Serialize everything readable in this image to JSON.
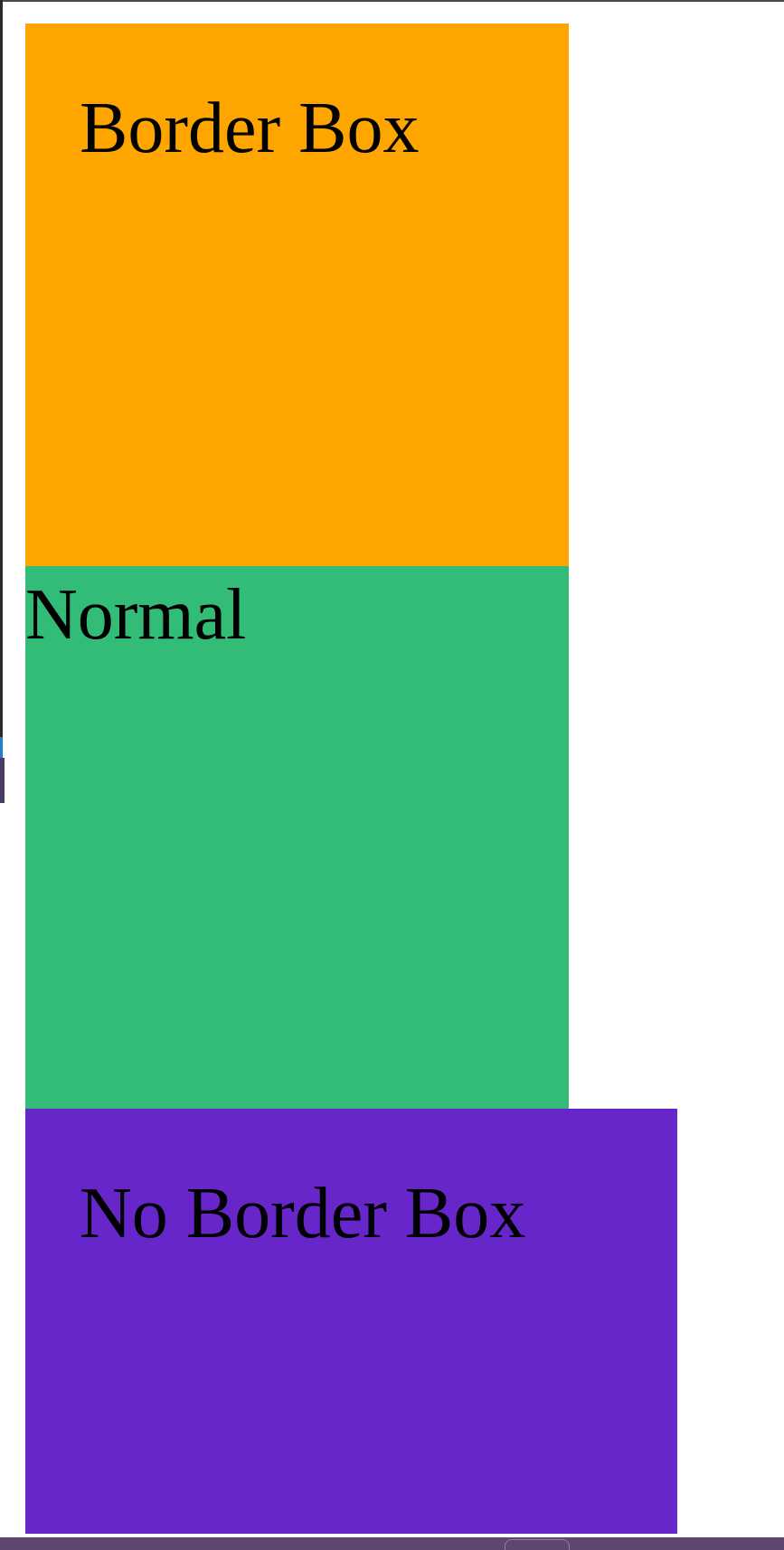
{
  "boxes": {
    "border_box": {
      "label": "Border Box",
      "color": "#ffa500"
    },
    "normal": {
      "label": "Normal",
      "color": "#32bc78"
    },
    "no_border_box": {
      "label": "No Border Box",
      "color": "#6626ca"
    }
  },
  "chrome": {
    "taskbar_color": "#5d4670",
    "edge_color": "#2a2a2a"
  }
}
